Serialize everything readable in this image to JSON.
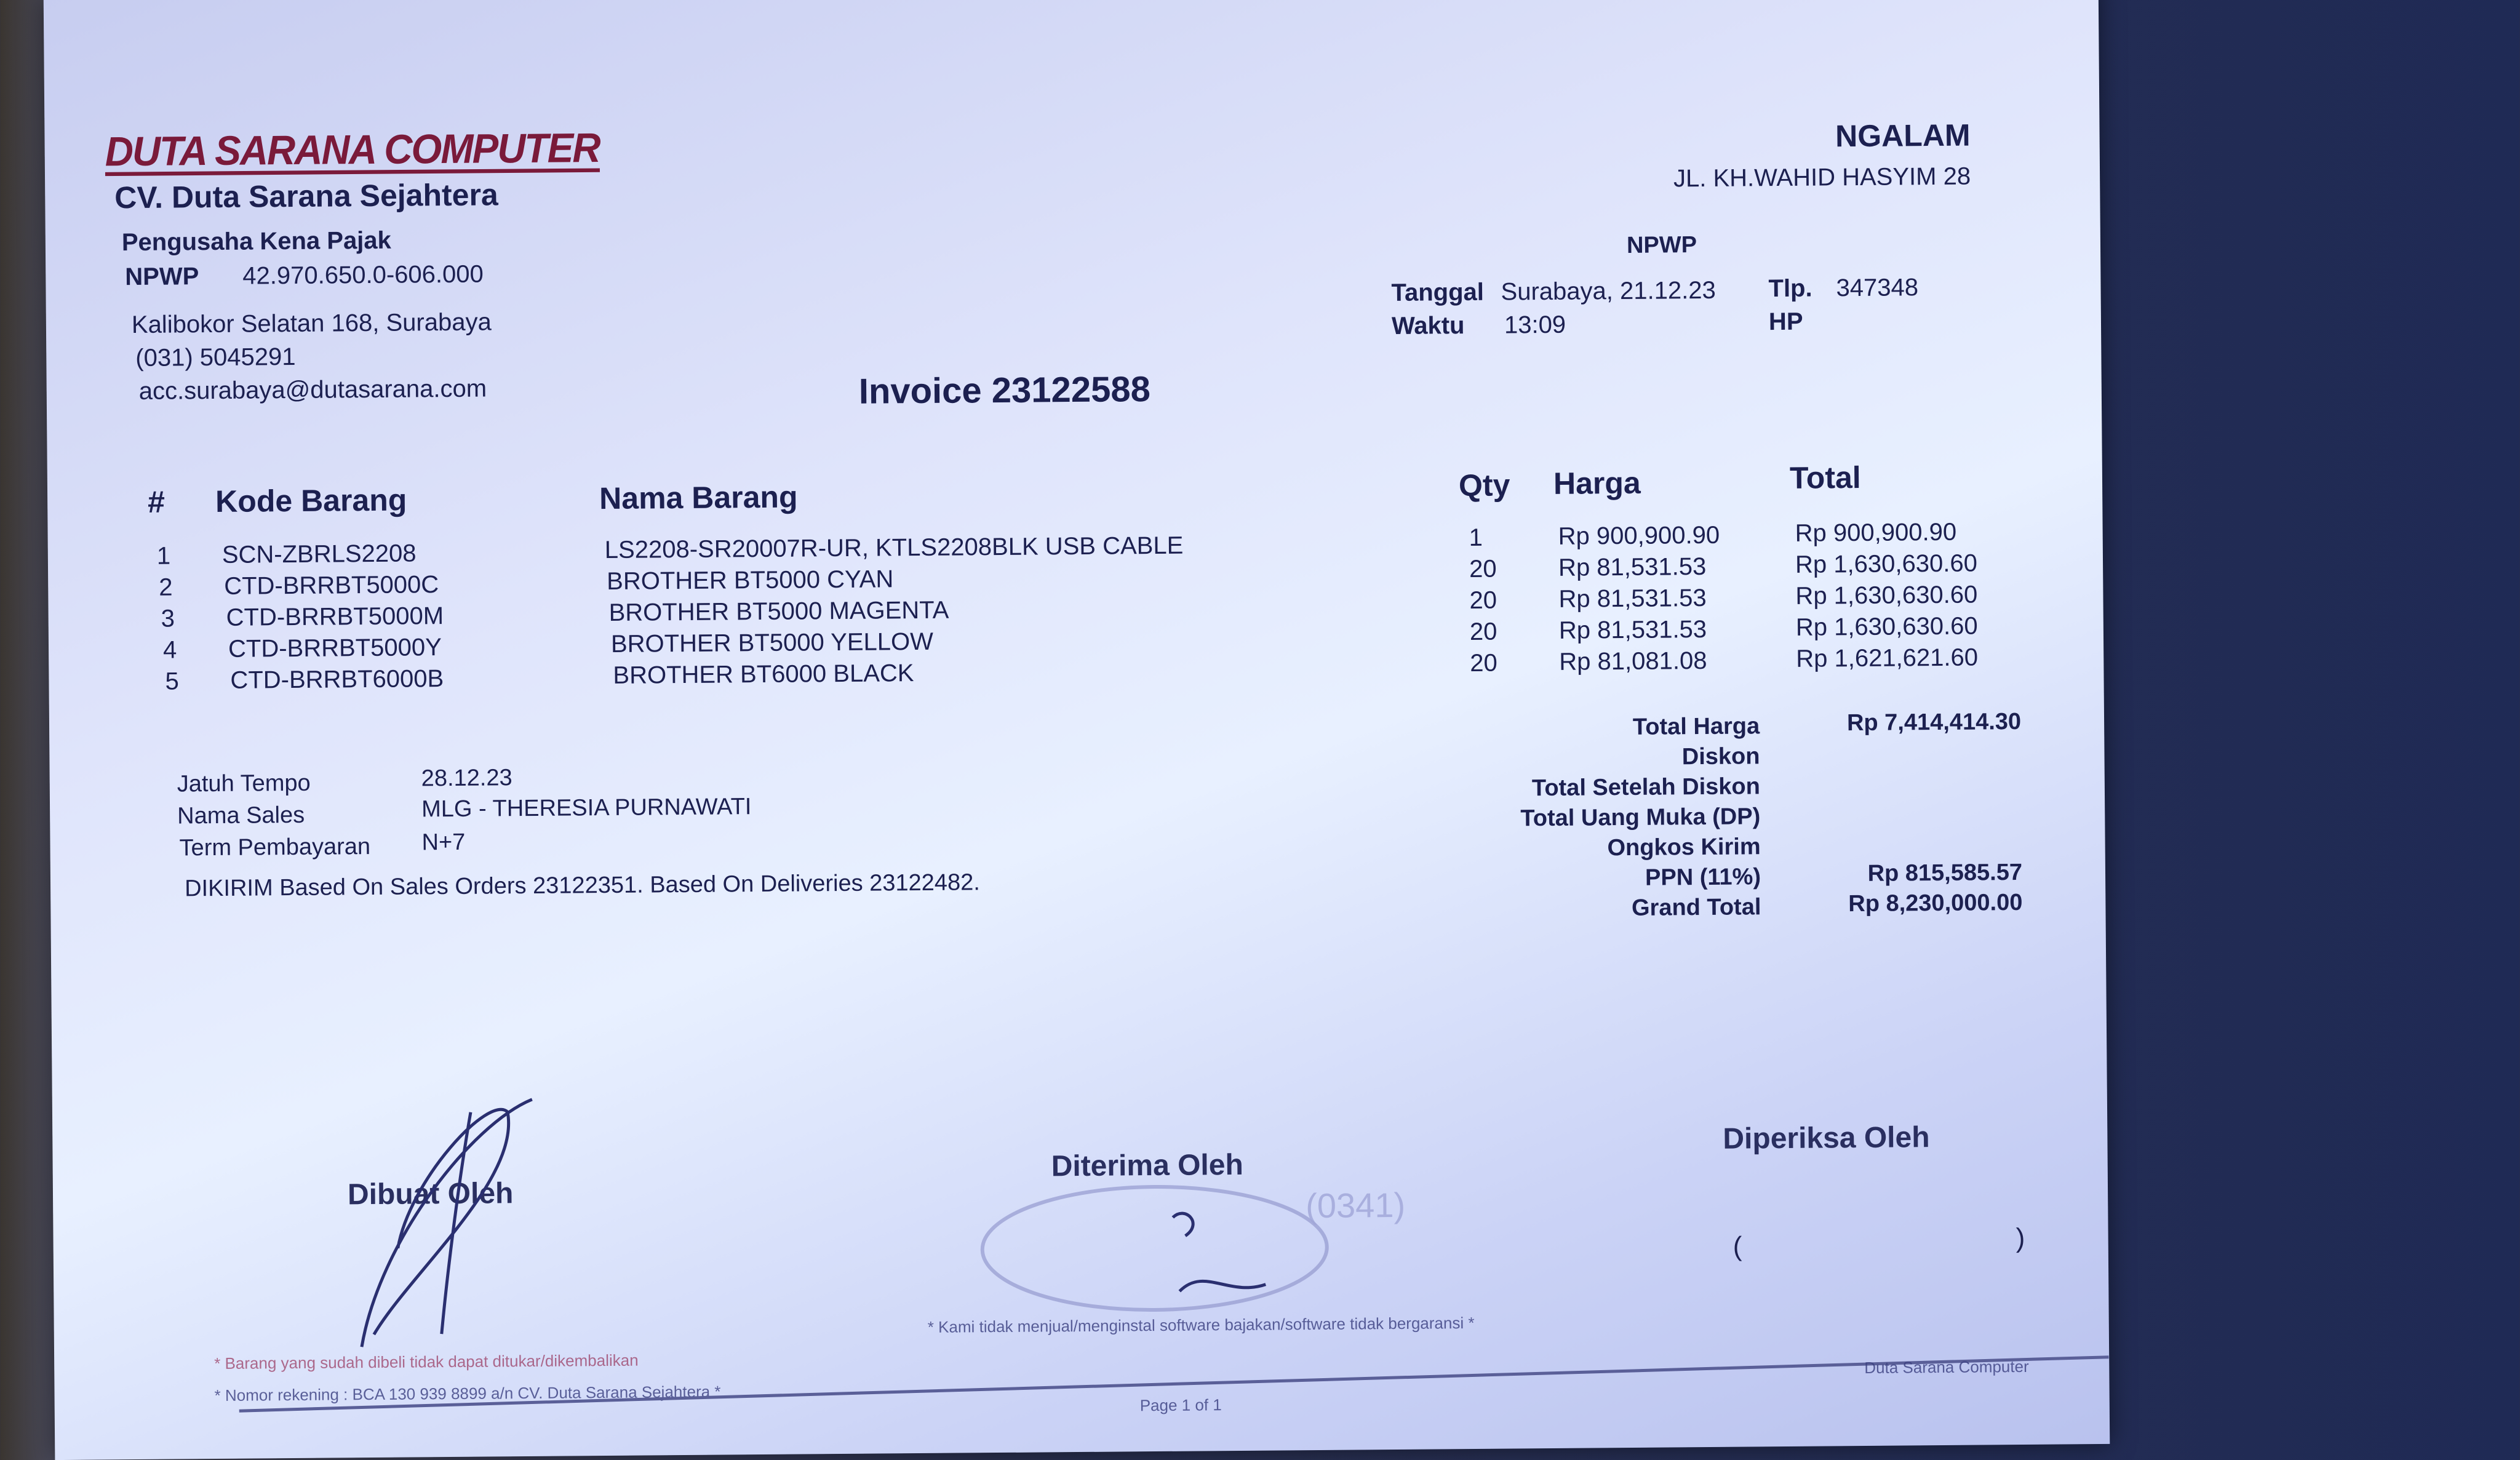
{
  "company": {
    "logo": "DUTA SARANA COMPUTER",
    "name": "CV. Duta Sarana Sejahtera",
    "tax_status": "Pengusaha Kena Pajak",
    "npwp_label": "NPWP",
    "npwp": "42.970.650.0-606.000",
    "address": "Kalibokor Selatan 168, Surabaya",
    "phone": "(031) 5045291",
    "email": "acc.surabaya@dutasarana.com"
  },
  "customer": {
    "name": "NGALAM",
    "address": "JL. KH.WAHID HASYIM 28",
    "npwp_label": "NPWP",
    "date_label": "Tanggal",
    "date": "Surabaya, 21.12.23",
    "time_label": "Waktu",
    "time": "13:09",
    "tlp_label": "Tlp.",
    "tlp": "347348",
    "hp_label": "HP"
  },
  "invoice_title": "Invoice 23122588",
  "table": {
    "headers": [
      "#",
      "Kode Barang",
      "Nama Barang",
      "Qty",
      "Harga",
      "Total"
    ],
    "rows": [
      [
        "1",
        "SCN-ZBRLS2208",
        "LS2208-SR20007R-UR, KTLS2208BLK USB CABLE",
        "1",
        "Rp 900,900.90",
        "Rp 900,900.90"
      ],
      [
        "2",
        "CTD-BRRBT5000C",
        "BROTHER BT5000 CYAN",
        "20",
        "Rp 81,531.53",
        "Rp 1,630,630.60"
      ],
      [
        "3",
        "CTD-BRRBT5000M",
        "BROTHER BT5000 MAGENTA",
        "20",
        "Rp 81,531.53",
        "Rp 1,630,630.60"
      ],
      [
        "4",
        "CTD-BRRBT5000Y",
        "BROTHER BT5000 YELLOW",
        "20",
        "Rp 81,531.53",
        "Rp 1,630,630.60"
      ],
      [
        "5",
        "CTD-BRRBT6000B",
        "BROTHER BT6000 BLACK",
        "20",
        "Rp 81,081.08",
        "Rp 1,621,621.60"
      ]
    ]
  },
  "info": {
    "due_label": "Jatuh Tempo",
    "due": "28.12.23",
    "sales_label": "Nama Sales",
    "sales": "MLG - THERESIA PURNAWATI",
    "term_label": "Term Pembayaran",
    "term": "N+7",
    "note": "DIKIRIM Based On Sales Orders 23122351. Based On Deliveries 23122482."
  },
  "totals": [
    {
      "label": "Total Harga",
      "value": "Rp 7,414,414.30"
    },
    {
      "label": "Diskon",
      "value": ""
    },
    {
      "label": "Total Setelah Diskon",
      "value": ""
    },
    {
      "label": "Total Uang Muka (DP)",
      "value": ""
    },
    {
      "label": "Ongkos Kirim",
      "value": ""
    },
    {
      "label": "PPN (11%)",
      "value": "Rp 815,585.57"
    },
    {
      "label": "Grand Total",
      "value": "Rp 8,230,000.00"
    }
  ],
  "signatures": {
    "made_by": "Dibuat Oleh",
    "received_by": "Diterima Oleh",
    "checked_by": "Diperiksa Oleh",
    "stamp_text": "(0341)"
  },
  "footer": {
    "note_return": "* Barang yang sudah dibeli tidak dapat ditukar/dikembalikan",
    "note_account": "* Nomor rekening : BCA 130 939 8899 a/n CV. Duta Sarana Sejahtera *",
    "note_software": "* Kami tidak menjual/menginstal software bajakan/software tidak bergaransi *",
    "brand": "Duta Sarana Computer",
    "page": "Page 1 of 1"
  },
  "colors": {
    "logo": "#7a1a3a",
    "ink": "#1c2050",
    "paper": "#dfe4fb"
  }
}
